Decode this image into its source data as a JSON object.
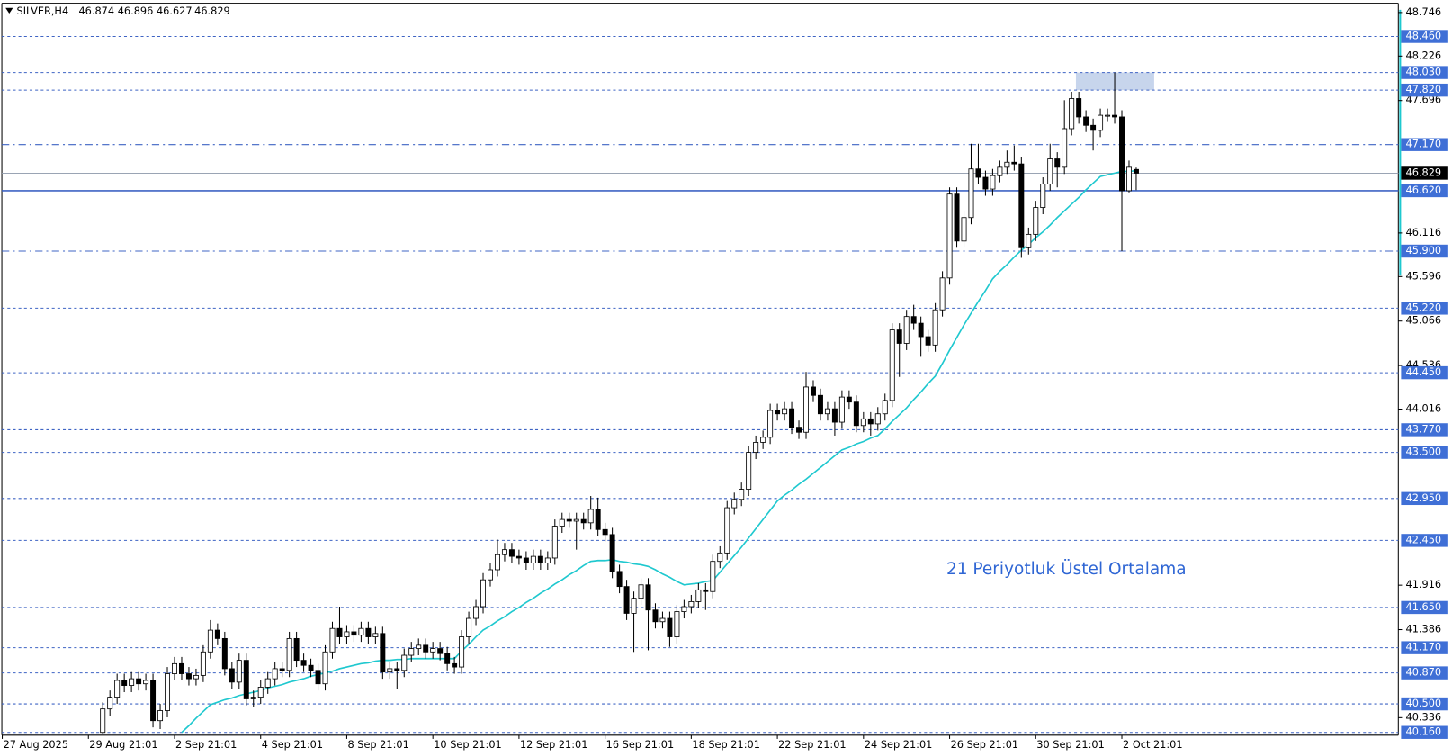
{
  "chart_data": {
    "type": "candlestick",
    "symbol": "SILVER,H4",
    "annotation": "21 Periyotluk Üstel Ortalama",
    "annotation_color": "#2f66d4",
    "up_color": "#ffffff",
    "down_color": "#000000",
    "level_color": "#3f64c4",
    "label_color": "#3f6fd6",
    "current_color": "#000000",
    "ylim": [
      40.127,
      48.856
    ],
    "xlim": [
      -14.06,
      180.52
    ],
    "yticks": [
      48.746,
      48.226,
      47.696,
      46.116,
      45.596,
      45.066,
      44.536,
      44.016,
      41.916,
      41.386,
      40.336
    ],
    "xticks": [
      {
        "value": -14,
        "label": "27 Aug 2025"
      },
      {
        "value": -2,
        "label": "29 Aug 21:01"
      },
      {
        "value": 10,
        "label": "2 Sep 21:01"
      },
      {
        "value": 22,
        "label": "4 Sep 21:01"
      },
      {
        "value": 34,
        "label": "8 Sep 21:01"
      },
      {
        "value": 46,
        "label": "10 Sep 21:01"
      },
      {
        "value": 58,
        "label": "12 Sep 21:01"
      },
      {
        "value": 70,
        "label": "16 Sep 21:01"
      },
      {
        "value": 82,
        "label": "18 Sep 21:01"
      },
      {
        "value": 94,
        "label": "22 Sep 21:01"
      },
      {
        "value": 106,
        "label": "24 Sep 21:01"
      },
      {
        "value": 118,
        "label": "26 Sep 21:01"
      },
      {
        "value": 130,
        "label": "30 Sep 21:01"
      },
      {
        "value": 142,
        "label": "2 Oct 21:01"
      }
    ],
    "levels": [
      {
        "value": 48.46,
        "label": "48.460",
        "style": "dash"
      },
      {
        "value": 48.03,
        "label": "48.030",
        "style": "dash"
      },
      {
        "value": 47.82,
        "label": "47.820",
        "style": "dash"
      },
      {
        "value": 47.17,
        "label": "47.170",
        "style": "dashdot"
      },
      {
        "value": 46.62,
        "label": "46.620",
        "style": "solid"
      },
      {
        "value": 45.9,
        "label": "45.900",
        "style": "dashdot"
      },
      {
        "value": 45.22,
        "label": "45.220",
        "style": "dash"
      },
      {
        "value": 44.45,
        "label": "44.450",
        "style": "dash"
      },
      {
        "value": 43.77,
        "label": "43.770",
        "style": "dash"
      },
      {
        "value": 43.5,
        "label": "43.500",
        "style": "dash"
      },
      {
        "value": 42.95,
        "label": "42.950",
        "style": "dash"
      },
      {
        "value": 42.45,
        "label": "42.450",
        "style": "dash"
      },
      {
        "value": 41.65,
        "label": "41.650",
        "style": "dash"
      },
      {
        "value": 41.17,
        "label": "41.170",
        "style": "dash"
      },
      {
        "value": 40.87,
        "label": "40.870",
        "style": "dash"
      },
      {
        "value": 40.5,
        "label": "40.500",
        "style": "dash"
      },
      {
        "value": 40.16,
        "label": "40.160",
        "style": "dash"
      }
    ],
    "zone": {
      "x": [
        135.6,
        146.5
      ],
      "y": [
        47.82,
        48.03
      ],
      "color": "#c7d5ec"
    },
    "ema": {
      "color": "#1fc8cf",
      "values": [
        null,
        null,
        null,
        null,
        null,
        null,
        null,
        null,
        null,
        null,
        null,
        40.16,
        40.24,
        40.33,
        40.41,
        40.49,
        40.52,
        40.55,
        40.57,
        40.6,
        40.62,
        40.64,
        40.66,
        40.69,
        40.71,
        40.73,
        40.76,
        40.78,
        40.8,
        40.83,
        40.85,
        40.87,
        40.89,
        40.92,
        40.94,
        40.96,
        40.98,
        40.99,
        41.01,
        41.02,
        41.02,
        41.03,
        41.03,
        41.04,
        41.04,
        41.04,
        41.04,
        41.04,
        41.04,
        41.04,
        41.13,
        41.21,
        41.3,
        41.38,
        41.43,
        41.49,
        41.54,
        41.6,
        41.65,
        41.71,
        41.76,
        41.82,
        41.87,
        41.93,
        41.98,
        42.04,
        42.09,
        42.15,
        42.2,
        42.21,
        42.21,
        42.22,
        42.2,
        42.19,
        42.17,
        42.16,
        42.14,
        42.1,
        42.05,
        42.01,
        41.96,
        41.92,
        41.93,
        41.94,
        41.96,
        41.97,
        42.07,
        42.17,
        42.27,
        42.37,
        42.48,
        42.59,
        42.7,
        42.81,
        42.92,
        42.99,
        43.05,
        43.12,
        43.18,
        43.25,
        43.32,
        43.39,
        43.46,
        43.53,
        43.56,
        43.6,
        43.63,
        43.67,
        43.7,
        43.78,
        43.87,
        43.95,
        44.03,
        44.13,
        44.22,
        44.32,
        44.41,
        44.56,
        44.72,
        44.87,
        45.02,
        45.16,
        45.3,
        45.43,
        45.57,
        45.66,
        45.74,
        45.83,
        45.91,
        45.98,
        46.06,
        46.13,
        46.21,
        46.3,
        46.38,
        46.46,
        46.54,
        46.63,
        46.71,
        46.79,
        46.81,
        46.83,
        46.85,
        46.85,
        46.86
      ]
    },
    "candles": [
      [
        40.16,
        40.52,
        40.14,
        40.44
      ],
      [
        40.44,
        40.66,
        40.36,
        40.58
      ],
      [
        40.58,
        40.86,
        40.5,
        40.78
      ],
      [
        40.78,
        40.86,
        40.64,
        40.72
      ],
      [
        40.72,
        40.88,
        40.64,
        40.8
      ],
      [
        40.8,
        40.88,
        40.66,
        40.74
      ],
      [
        40.74,
        40.86,
        40.66,
        40.78
      ],
      [
        40.78,
        40.86,
        40.22,
        40.3
      ],
      [
        40.3,
        40.5,
        40.2,
        40.42
      ],
      [
        40.42,
        40.94,
        40.34,
        40.86
      ],
      [
        40.86,
        41.06,
        40.78,
        40.98
      ],
      [
        40.98,
        41.06,
        40.78,
        40.86
      ],
      [
        40.86,
        40.94,
        40.72,
        40.8
      ],
      [
        40.8,
        40.92,
        40.72,
        40.84
      ],
      [
        40.84,
        41.2,
        40.76,
        41.12
      ],
      [
        41.12,
        41.5,
        41.04,
        41.38
      ],
      [
        41.38,
        41.46,
        41.2,
        41.28
      ],
      [
        41.28,
        41.36,
        40.84,
        40.92
      ],
      [
        40.92,
        41.0,
        40.68,
        40.76
      ],
      [
        40.76,
        41.1,
        40.68,
        41.02
      ],
      [
        41.02,
        41.1,
        40.48,
        40.56
      ],
      [
        40.56,
        40.66,
        40.46,
        40.58
      ],
      [
        40.58,
        40.78,
        40.5,
        40.7
      ],
      [
        40.7,
        40.88,
        40.62,
        40.8
      ],
      [
        40.8,
        41.0,
        40.72,
        40.92
      ],
      [
        40.92,
        41.0,
        40.82,
        40.9
      ],
      [
        40.9,
        41.36,
        40.82,
        41.28
      ],
      [
        41.28,
        41.36,
        40.94,
        41.02
      ],
      [
        41.02,
        41.1,
        40.88,
        40.96
      ],
      [
        40.96,
        41.04,
        40.82,
        40.9
      ],
      [
        40.9,
        40.98,
        40.66,
        40.74
      ],
      [
        40.74,
        41.2,
        40.66,
        41.12
      ],
      [
        41.12,
        41.48,
        41.04,
        41.4
      ],
      [
        41.4,
        41.66,
        41.22,
        41.3
      ],
      [
        41.3,
        41.44,
        41.22,
        41.36
      ],
      [
        41.36,
        41.44,
        41.24,
        41.32
      ],
      [
        41.32,
        41.48,
        41.24,
        41.4
      ],
      [
        41.4,
        41.48,
        41.22,
        41.3
      ],
      [
        41.3,
        41.42,
        41.22,
        41.34
      ],
      [
        41.34,
        41.42,
        40.8,
        40.88
      ],
      [
        40.88,
        41.0,
        40.8,
        40.92
      ],
      [
        40.92,
        41.0,
        40.68,
        40.9
      ],
      [
        40.9,
        41.16,
        40.82,
        41.08
      ],
      [
        41.08,
        41.24,
        41.0,
        41.16
      ],
      [
        41.16,
        41.28,
        41.08,
        41.2
      ],
      [
        41.2,
        41.28,
        41.04,
        41.12
      ],
      [
        41.12,
        41.24,
        41.04,
        41.16
      ],
      [
        41.16,
        41.24,
        41.02,
        41.1
      ],
      [
        41.1,
        41.18,
        40.9,
        40.98
      ],
      [
        40.98,
        41.06,
        40.86,
        40.94
      ],
      [
        40.94,
        41.38,
        40.86,
        41.3
      ],
      [
        41.3,
        41.6,
        41.22,
        41.52
      ],
      [
        41.52,
        41.74,
        41.44,
        41.66
      ],
      [
        41.66,
        42.06,
        41.58,
        41.98
      ],
      [
        41.98,
        42.18,
        41.9,
        42.1
      ],
      [
        42.1,
        42.46,
        42.02,
        42.28
      ],
      [
        42.28,
        42.42,
        42.2,
        42.34
      ],
      [
        42.34,
        42.42,
        42.18,
        42.26
      ],
      [
        42.26,
        42.34,
        42.16,
        42.24
      ],
      [
        42.24,
        42.32,
        42.1,
        42.18
      ],
      [
        42.18,
        42.34,
        42.1,
        42.26
      ],
      [
        42.26,
        42.34,
        42.1,
        42.18
      ],
      [
        42.18,
        42.32,
        42.1,
        42.24
      ],
      [
        42.24,
        42.7,
        42.16,
        42.62
      ],
      [
        42.62,
        42.78,
        42.54,
        42.7
      ],
      [
        42.7,
        42.78,
        42.6,
        42.68
      ],
      [
        42.68,
        42.78,
        42.34,
        42.7
      ],
      [
        42.7,
        42.78,
        42.58,
        42.66
      ],
      [
        42.66,
        42.98,
        42.58,
        42.82
      ],
      [
        42.82,
        42.96,
        42.5,
        42.58
      ],
      [
        42.58,
        42.66,
        42.44,
        42.52
      ],
      [
        42.52,
        42.6,
        42.0,
        42.08
      ],
      [
        42.08,
        42.16,
        41.82,
        41.9
      ],
      [
        41.9,
        41.98,
        41.5,
        41.58
      ],
      [
        41.58,
        41.84,
        41.12,
        41.76
      ],
      [
        41.76,
        42.0,
        41.68,
        41.92
      ],
      [
        41.92,
        42.0,
        41.14,
        41.62
      ],
      [
        41.62,
        41.7,
        41.4,
        41.48
      ],
      [
        41.48,
        41.6,
        41.4,
        41.52
      ],
      [
        41.52,
        41.6,
        41.18,
        41.3
      ],
      [
        41.3,
        41.68,
        41.22,
        41.6
      ],
      [
        41.6,
        41.74,
        41.52,
        41.66
      ],
      [
        41.66,
        41.8,
        41.58,
        41.72
      ],
      [
        41.72,
        41.94,
        41.64,
        41.86
      ],
      [
        41.86,
        41.94,
        41.62,
        41.84
      ],
      [
        41.84,
        42.28,
        41.76,
        42.2
      ],
      [
        42.2,
        42.38,
        42.12,
        42.3
      ],
      [
        42.3,
        42.92,
        42.22,
        42.84
      ],
      [
        42.84,
        43.02,
        42.76,
        42.94
      ],
      [
        42.94,
        43.14,
        42.86,
        43.06
      ],
      [
        43.06,
        43.58,
        42.98,
        43.5
      ],
      [
        43.5,
        43.7,
        43.42,
        43.62
      ],
      [
        43.62,
        43.76,
        43.54,
        43.68
      ],
      [
        43.68,
        44.08,
        43.6,
        44.0
      ],
      [
        44.0,
        44.08,
        43.88,
        43.96
      ],
      [
        43.96,
        44.1,
        43.88,
        44.02
      ],
      [
        44.02,
        44.1,
        43.72,
        43.8
      ],
      [
        43.8,
        43.88,
        43.66,
        43.74
      ],
      [
        43.74,
        44.46,
        43.66,
        44.28
      ],
      [
        44.28,
        44.36,
        44.1,
        44.18
      ],
      [
        44.18,
        44.26,
        43.88,
        43.96
      ],
      [
        43.96,
        44.1,
        43.88,
        44.02
      ],
      [
        44.02,
        44.1,
        43.7,
        43.86
      ],
      [
        43.86,
        44.24,
        43.78,
        44.16
      ],
      [
        44.16,
        44.24,
        44.02,
        44.1
      ],
      [
        44.1,
        44.18,
        43.74,
        43.82
      ],
      [
        43.82,
        43.98,
        43.74,
        43.9
      ],
      [
        43.9,
        43.98,
        43.7,
        43.84
      ],
      [
        43.84,
        44.04,
        43.76,
        43.96
      ],
      [
        43.96,
        44.2,
        43.88,
        44.12
      ],
      [
        44.12,
        45.04,
        44.04,
        44.96
      ],
      [
        44.96,
        45.04,
        44.4,
        44.8
      ],
      [
        44.8,
        45.2,
        44.72,
        45.12
      ],
      [
        45.12,
        45.26,
        44.96,
        45.04
      ],
      [
        45.04,
        45.12,
        44.64,
        44.88
      ],
      [
        44.88,
        44.96,
        44.7,
        44.78
      ],
      [
        44.78,
        45.28,
        44.7,
        45.2
      ],
      [
        45.2,
        45.66,
        45.12,
        45.58
      ],
      [
        45.58,
        46.66,
        45.5,
        46.58
      ],
      [
        46.58,
        46.66,
        45.94,
        46.02
      ],
      [
        46.02,
        46.38,
        45.94,
        46.3
      ],
      [
        46.3,
        47.18,
        46.22,
        46.88
      ],
      [
        46.88,
        47.18,
        46.7,
        46.78
      ],
      [
        46.78,
        46.86,
        46.56,
        46.64
      ],
      [
        46.64,
        46.88,
        46.56,
        46.8
      ],
      [
        46.8,
        46.98,
        46.72,
        46.9
      ],
      [
        46.9,
        47.1,
        46.82,
        46.96
      ],
      [
        46.96,
        47.16,
        46.86,
        46.94
      ],
      [
        46.94,
        47.02,
        45.82,
        45.94
      ],
      [
        45.94,
        46.18,
        45.86,
        46.1
      ],
      [
        46.1,
        46.5,
        46.02,
        46.42
      ],
      [
        46.42,
        46.78,
        46.34,
        46.7
      ],
      [
        46.7,
        47.18,
        46.62,
        47.0
      ],
      [
        47.0,
        47.08,
        46.66,
        46.9
      ],
      [
        46.9,
        47.7,
        46.82,
        47.36
      ],
      [
        47.36,
        47.8,
        47.28,
        47.72
      ],
      [
        47.72,
        47.8,
        47.42,
        47.5
      ],
      [
        47.5,
        47.58,
        47.32,
        47.4
      ],
      [
        47.4,
        47.48,
        47.1,
        47.34
      ],
      [
        47.34,
        47.6,
        47.26,
        47.52
      ],
      [
        47.52,
        47.6,
        47.44,
        47.52
      ],
      [
        47.52,
        48.03,
        47.42,
        47.5
      ],
      [
        47.5,
        47.58,
        45.9,
        46.62
      ],
      [
        46.62,
        46.98,
        46.6,
        46.9
      ],
      [
        46.874,
        46.896,
        46.627,
        46.829
      ]
    ]
  }
}
